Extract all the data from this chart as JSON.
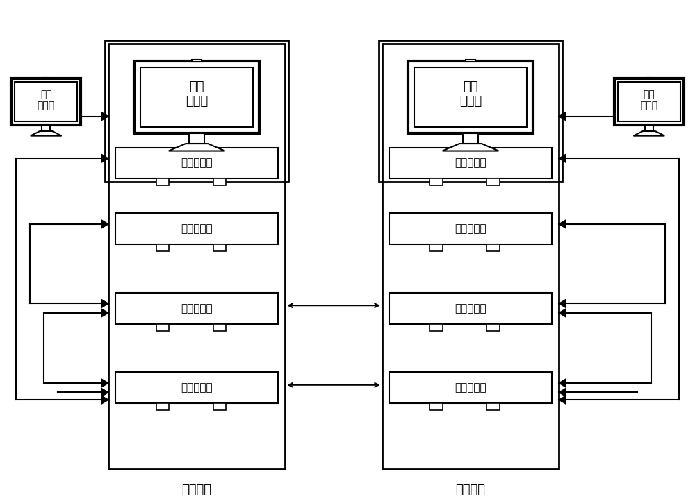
{
  "bg_color": "#ffffff",
  "line_color": "#000000",
  "text_color": "#000000",
  "font_size_large": 14,
  "font_size_medium": 12,
  "font_size_small": 10,
  "subnet1_label": "第一子网",
  "subnet2_label": "第二子网",
  "monitor2_label": "第二\n显示器",
  "monitor1_label": "第一\n显示器",
  "monitor3_label": "第三\n显示器",
  "monitor4_label": "第四\n显示器",
  "ipc1_label": "第一工控机",
  "ipc2_label": "第二工控机",
  "ipc3_label": "第三工控机",
  "ipc4_label": "第四工控机",
  "sw1_label": "第一交换机",
  "sw2_label": "第二交换机",
  "sw3_label": "第三交换机",
  "sw4_label": "第四交换机"
}
